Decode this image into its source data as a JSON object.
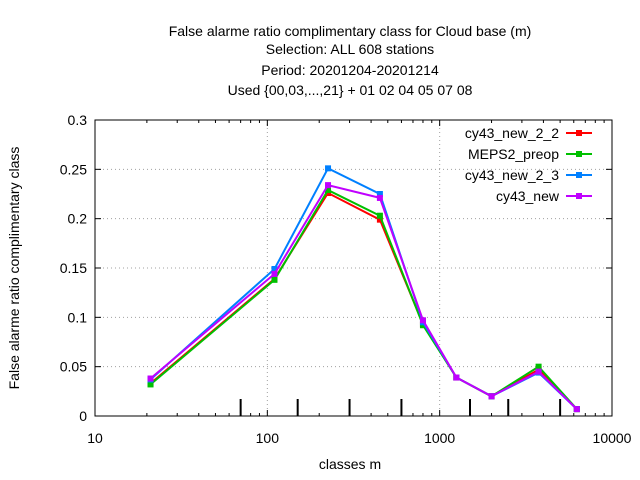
{
  "chart_data": {
    "type": "line",
    "title_lines": [
      "False alarme ratio complimentary class  for Cloud base (m)",
      "Selection: ALL    608 stations",
      "Period: 20201204-20201214",
      "Used {00,03,...,21} + 01 02 04 05 07 08"
    ],
    "xlabel": "classes m",
    "ylabel": "False alarme ratio complimentary class",
    "x_scale": "log",
    "xlim": [
      10,
      10000
    ],
    "ylim": [
      0,
      0.3
    ],
    "x_ticks": [
      10,
      100,
      1000,
      10000
    ],
    "x_tick_labels": [
      "10",
      "100",
      "1000",
      "10000"
    ],
    "y_ticks": [
      0,
      0.05,
      0.1,
      0.15,
      0.2,
      0.25,
      0.3
    ],
    "y_tick_labels": [
      "0",
      "0.05",
      "0.1",
      "0.15",
      "0.2",
      "0.25",
      "0.3"
    ],
    "grid": true,
    "legend_position": "top-right",
    "class_markers": [
      70,
      150,
      300,
      600,
      1500,
      2500,
      5000
    ],
    "x": [
      21,
      110,
      225,
      450,
      800,
      1250,
      2000,
      3750,
      6250
    ],
    "series": [
      {
        "name": "cy43_new_2_2",
        "color": "#ff0000",
        "values": [
          0.033,
          0.139,
          0.226,
          0.199,
          0.093,
          0.039,
          0.02,
          0.047,
          0.007
        ]
      },
      {
        "name": "MEPS2_preop",
        "color": "#00c000",
        "values": [
          0.032,
          0.138,
          0.229,
          0.203,
          0.092,
          0.039,
          0.02,
          0.05,
          0.007
        ]
      },
      {
        "name": "cy43_new_2_3",
        "color": "#0080ff",
        "values": [
          0.037,
          0.149,
          0.251,
          0.225,
          0.095,
          0.039,
          0.02,
          0.044,
          0.007
        ]
      },
      {
        "name": "cy43_new",
        "color": "#c000ff",
        "values": [
          0.038,
          0.144,
          0.234,
          0.221,
          0.097,
          0.039,
          0.02,
          0.045,
          0.007
        ]
      }
    ]
  }
}
